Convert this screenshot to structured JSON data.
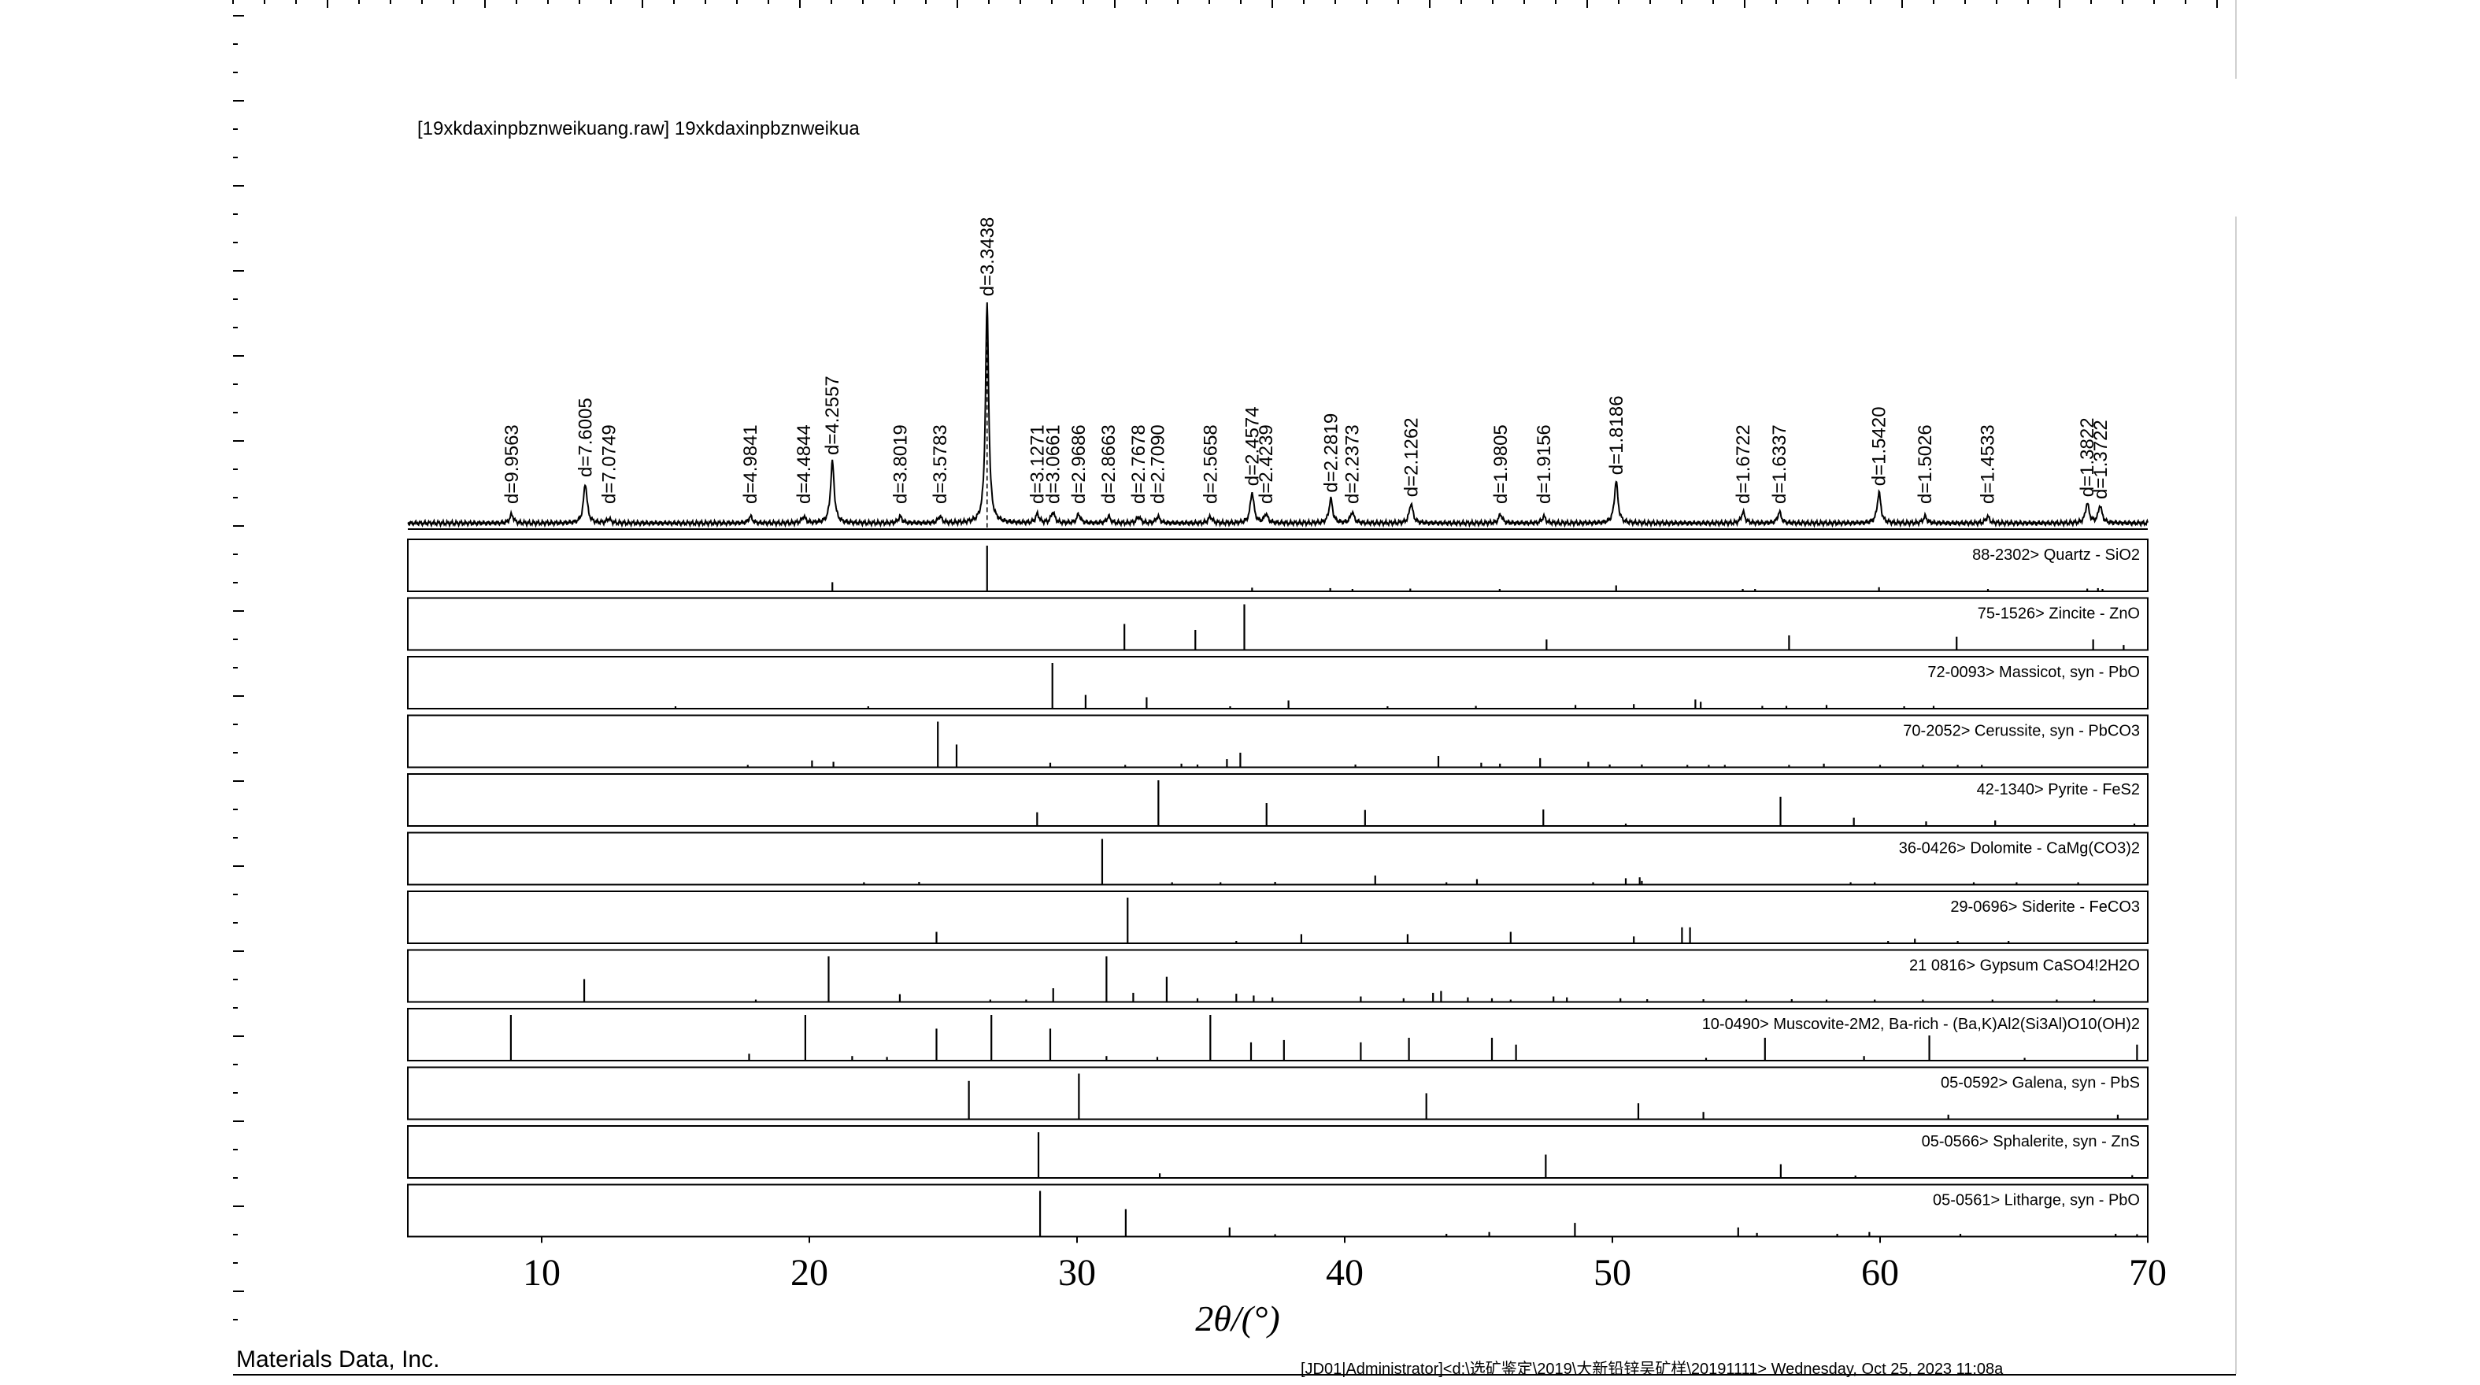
{
  "pattern_title": "[19xkdaxinpbznweikuang.raw] 19xkdaxinpbznweikua",
  "footer": {
    "left": "Materials Data, Inc.",
    "right": "[JD01|Administrator]<d:\\选矿鉴定\\2019\\大新铅锌吴矿样\\20191111> Wednesday, Oct 25, 2023 11:08a"
  },
  "chart_data": {
    "type": "line",
    "title": "[19xkdaxinpbznweikuang.raw] 19xkdaxinpbznweikua",
    "xlabel": "2θ/(°)",
    "ylabel": "",
    "xlim": [
      5,
      70
    ],
    "x_ticks": [
      10,
      20,
      30,
      40,
      50,
      60,
      70
    ],
    "grid": false,
    "pattern": {
      "baseline": 2,
      "peaks": [
        {
          "x": 8.88,
          "h": 4,
          "d": "d=9.9563"
        },
        {
          "x": 11.63,
          "h": 18,
          "d": "d=7.6005"
        },
        {
          "x": 12.51,
          "h": 2,
          "d": "d=7.0749"
        },
        {
          "x": 17.8,
          "h": 3,
          "d": "d=4.9841"
        },
        {
          "x": 19.79,
          "h": 3,
          "d": "d=4.4844"
        },
        {
          "x": 20.86,
          "h": 28,
          "d": "d=4.2557"
        },
        {
          "x": 23.39,
          "h": 3,
          "d": "d=3.8019"
        },
        {
          "x": 24.88,
          "h": 3,
          "d": "d=3.5783"
        },
        {
          "x": 26.64,
          "h": 100,
          "d": "d=3.3438"
        },
        {
          "x": 28.52,
          "h": 4,
          "d": "d=3.1271"
        },
        {
          "x": 29.1,
          "h": 5,
          "d": "d=3.0661"
        },
        {
          "x": 30.06,
          "h": 4,
          "d": "d=2.9686"
        },
        {
          "x": 31.18,
          "h": 3,
          "d": "d=2.8663"
        },
        {
          "x": 32.3,
          "h": 3,
          "d": "d=2.7678"
        },
        {
          "x": 33.02,
          "h": 3,
          "d": "d=2.7090"
        },
        {
          "x": 34.98,
          "h": 3,
          "d": "d=2.5658"
        },
        {
          "x": 36.54,
          "h": 14,
          "d": "d=2.4574"
        },
        {
          "x": 37.06,
          "h": 4,
          "d": "d=2.4239"
        },
        {
          "x": 39.48,
          "h": 11,
          "d": "d=2.2819"
        },
        {
          "x": 40.28,
          "h": 5,
          "d": "d=2.2373"
        },
        {
          "x": 42.48,
          "h": 9,
          "d": "d=2.1262"
        },
        {
          "x": 45.82,
          "h": 4,
          "d": "d=1.9805"
        },
        {
          "x": 47.44,
          "h": 3,
          "d": "d=1.9156"
        },
        {
          "x": 50.14,
          "h": 19,
          "d": "d=1.8186"
        },
        {
          "x": 54.88,
          "h": 5,
          "d": "d=1.6722"
        },
        {
          "x": 56.24,
          "h": 5,
          "d": "d=1.6337"
        },
        {
          "x": 59.96,
          "h": 14,
          "d": "d=1.5420"
        },
        {
          "x": 61.68,
          "h": 3,
          "d": "d=1.5026"
        },
        {
          "x": 64.02,
          "h": 3,
          "d": "d=1.4533"
        },
        {
          "x": 67.74,
          "h": 9,
          "d": "d=1.3822"
        },
        {
          "x": 68.22,
          "h": 8,
          "d": "d=1.3722"
        }
      ]
    },
    "references": [
      {
        "label": "88-2302> Quartz - SiO2",
        "lines": [
          [
            20.86,
            20
          ],
          [
            26.64,
            100
          ],
          [
            36.54,
            8
          ],
          [
            39.46,
            7
          ],
          [
            40.29,
            4
          ],
          [
            42.45,
            6
          ],
          [
            45.79,
            4
          ],
          [
            50.14,
            13
          ],
          [
            54.87,
            4
          ],
          [
            55.33,
            2
          ],
          [
            59.96,
            9
          ],
          [
            64.03,
            2
          ],
          [
            67.74,
            6
          ],
          [
            68.14,
            7
          ],
          [
            68.31,
            5
          ]
        ]
      },
      {
        "label": "75-1526> Zincite - ZnO",
        "lines": [
          [
            31.77,
            57
          ],
          [
            34.42,
            44
          ],
          [
            36.25,
            100
          ],
          [
            47.54,
            23
          ],
          [
            56.6,
            32
          ],
          [
            62.86,
            29
          ],
          [
            67.96,
            23
          ],
          [
            69.1,
            11
          ]
        ]
      },
      {
        "label": "72-0093> Massicot, syn - PbO",
        "lines": [
          [
            15.0,
            2
          ],
          [
            22.2,
            2
          ],
          [
            29.08,
            100
          ],
          [
            30.32,
            30
          ],
          [
            32.6,
            25
          ],
          [
            35.72,
            4
          ],
          [
            37.9,
            18
          ],
          [
            41.6,
            4
          ],
          [
            44.9,
            6
          ],
          [
            48.62,
            8
          ],
          [
            50.8,
            10
          ],
          [
            53.1,
            20
          ],
          [
            53.3,
            15
          ],
          [
            55.6,
            6
          ],
          [
            56.5,
            6
          ],
          [
            58.0,
            8
          ],
          [
            60.9,
            5
          ],
          [
            62.0,
            6
          ]
        ]
      },
      {
        "label": "70-2052> Cerussite, syn - PbCO3",
        "lines": [
          [
            17.7,
            3
          ],
          [
            20.1,
            15
          ],
          [
            20.9,
            12
          ],
          [
            24.8,
            100
          ],
          [
            25.5,
            50
          ],
          [
            29.0,
            10
          ],
          [
            31.8,
            4
          ],
          [
            33.9,
            8
          ],
          [
            34.5,
            6
          ],
          [
            35.6,
            18
          ],
          [
            36.1,
            32
          ],
          [
            40.4,
            6
          ],
          [
            43.5,
            25
          ],
          [
            45.1,
            10
          ],
          [
            45.8,
            8
          ],
          [
            47.3,
            20
          ],
          [
            49.1,
            12
          ],
          [
            49.9,
            6
          ],
          [
            51.1,
            6
          ],
          [
            52.8,
            5
          ],
          [
            53.6,
            5
          ],
          [
            54.2,
            4
          ],
          [
            56.6,
            4
          ],
          [
            57.9,
            8
          ],
          [
            60.0,
            5
          ],
          [
            61.6,
            4
          ],
          [
            62.9,
            4
          ],
          [
            63.8,
            4
          ]
        ]
      },
      {
        "label": "42-1340> Pyrite - FeS2",
        "lines": [
          [
            28.51,
            30
          ],
          [
            33.04,
            100
          ],
          [
            37.08,
            50
          ],
          [
            40.76,
            35
          ],
          [
            47.42,
            36
          ],
          [
            50.5,
            4
          ],
          [
            56.28,
            64
          ],
          [
            59.02,
            18
          ],
          [
            61.72,
            10
          ],
          [
            64.3,
            12
          ],
          [
            69.5,
            4
          ]
        ]
      },
      {
        "label": "36-0426> Dolomite - CaMg(CO3)2",
        "lines": [
          [
            22.04,
            4
          ],
          [
            24.1,
            6
          ],
          [
            30.94,
            100
          ],
          [
            33.55,
            3
          ],
          [
            35.36,
            5
          ],
          [
            37.4,
            6
          ],
          [
            41.14,
            20
          ],
          [
            43.8,
            4
          ],
          [
            44.94,
            12
          ],
          [
            49.28,
            4
          ],
          [
            50.5,
            14
          ],
          [
            51.02,
            16
          ],
          [
            51.1,
            8
          ],
          [
            58.9,
            3
          ],
          [
            59.8,
            5
          ],
          [
            63.5,
            3
          ],
          [
            65.1,
            4
          ],
          [
            67.4,
            3
          ]
        ]
      },
      {
        "label": "29-0696> Siderite - FeCO3",
        "lines": [
          [
            24.75,
            25
          ],
          [
            31.89,
            100
          ],
          [
            35.95,
            2
          ],
          [
            38.38,
            20
          ],
          [
            42.35,
            20
          ],
          [
            46.2,
            25
          ],
          [
            50.8,
            15
          ],
          [
            52.6,
            35
          ],
          [
            52.9,
            35
          ],
          [
            60.3,
            5
          ],
          [
            61.3,
            10
          ],
          [
            62.9,
            5
          ],
          [
            64.8,
            5
          ]
        ]
      },
      {
        "label": "21 0816> Gypsum   CaSO4!2H2O",
        "lines": [
          [
            11.59,
            50
          ],
          [
            18.0,
            3
          ],
          [
            20.72,
            100
          ],
          [
            23.38,
            17
          ],
          [
            26.76,
            3
          ],
          [
            28.1,
            4
          ],
          [
            29.11,
            30
          ],
          [
            31.1,
            100
          ],
          [
            32.1,
            20
          ],
          [
            33.35,
            55
          ],
          [
            34.5,
            8
          ],
          [
            35.95,
            18
          ],
          [
            36.6,
            14
          ],
          [
            37.3,
            10
          ],
          [
            40.6,
            12
          ],
          [
            42.2,
            8
          ],
          [
            43.3,
            20
          ],
          [
            43.6,
            24
          ],
          [
            44.6,
            10
          ],
          [
            45.5,
            8
          ],
          [
            46.2,
            4
          ],
          [
            47.8,
            12
          ],
          [
            48.3,
            10
          ],
          [
            50.3,
            8
          ],
          [
            51.3,
            6
          ],
          [
            53.4,
            6
          ],
          [
            55.0,
            4
          ],
          [
            56.7,
            6
          ],
          [
            58.0,
            4
          ],
          [
            59.8,
            4
          ],
          [
            61.6,
            3
          ],
          [
            64.2,
            4
          ],
          [
            66.6,
            3
          ],
          [
            68.0,
            3
          ]
        ]
      },
      {
        "label": "10-0490> Muscovite-2M2, Ba-rich - (Ba,K)Al2(Si3Al)O10(OH)2",
        "lines": [
          [
            8.85,
            100
          ],
          [
            17.75,
            15
          ],
          [
            19.85,
            100
          ],
          [
            21.6,
            10
          ],
          [
            22.9,
            8
          ],
          [
            24.75,
            70
          ],
          [
            26.8,
            100
          ],
          [
            29.0,
            70
          ],
          [
            31.1,
            10
          ],
          [
            33.0,
            8
          ],
          [
            34.98,
            100
          ],
          [
            36.5,
            40
          ],
          [
            37.73,
            45
          ],
          [
            40.6,
            40
          ],
          [
            42.4,
            50
          ],
          [
            45.5,
            50
          ],
          [
            46.4,
            35
          ],
          [
            53.5,
            6
          ],
          [
            55.7,
            50
          ],
          [
            59.4,
            10
          ],
          [
            61.84,
            55
          ],
          [
            65.4,
            6
          ],
          [
            69.6,
            35
          ]
        ]
      },
      {
        "label": "05-0592> Galena, syn - PbS",
        "lines": [
          [
            25.96,
            84
          ],
          [
            30.07,
            100
          ],
          [
            43.05,
            57
          ],
          [
            50.97,
            35
          ],
          [
            53.4,
            16
          ],
          [
            62.55,
            10
          ],
          [
            68.88,
            10
          ]
        ]
      },
      {
        "label": "05-0566> Sphalerite, syn - ZnS",
        "lines": [
          [
            28.56,
            100
          ],
          [
            33.09,
            10
          ],
          [
            47.51,
            51
          ],
          [
            56.29,
            30
          ],
          [
            59.08,
            2
          ],
          [
            69.42,
            6
          ]
        ]
      },
      {
        "label": "05-0561> Litharge, syn - PbO",
        "lines": [
          [
            28.62,
            100
          ],
          [
            31.82,
            60
          ],
          [
            35.7,
            20
          ],
          [
            37.4,
            4
          ],
          [
            43.8,
            6
          ],
          [
            45.4,
            10
          ],
          [
            48.6,
            30
          ],
          [
            54.7,
            20
          ],
          [
            55.4,
            8
          ],
          [
            58.4,
            6
          ],
          [
            59.6,
            10
          ],
          [
            63.0,
            6
          ],
          [
            68.8,
            6
          ],
          [
            69.6,
            4
          ]
        ]
      }
    ]
  }
}
